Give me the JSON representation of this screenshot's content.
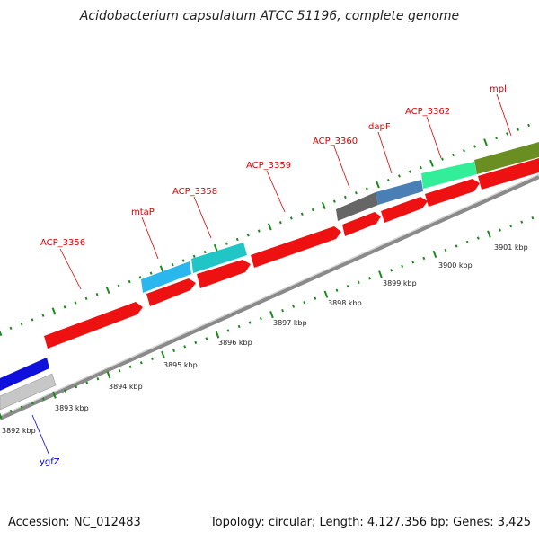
{
  "title": "Acidobacterium capsulatum ATCC 51196, complete genome",
  "footer": {
    "accession": "Accession: NC_012483",
    "summary": "Topology: circular; Length: 4,127,356 bp; Genes: 3,425"
  },
  "colors": {
    "forward_cds": "#ee1111",
    "label_red": "#dd0000",
    "label_blue": "#0000cc",
    "tick_green": "#1a8a1a",
    "backbone": "#888888"
  },
  "gene_labels": [
    {
      "name": "ACP_3356",
      "color": "#dd0000"
    },
    {
      "name": "mtaP",
      "color": "#dd0000"
    },
    {
      "name": "ACP_3358",
      "color": "#dd0000"
    },
    {
      "name": "ACP_3359",
      "color": "#dd0000"
    },
    {
      "name": "ACP_3360",
      "color": "#dd0000"
    },
    {
      "name": "dapF",
      "color": "#dd0000"
    },
    {
      "name": "ACP_3362",
      "color": "#dd0000"
    },
    {
      "name": "mpl",
      "color": "#dd0000"
    },
    {
      "name": "ygfZ",
      "color": "#0000cc"
    }
  ],
  "kbp_ticks": [
    "3892 kbp",
    "3893 kbp",
    "3894 kbp",
    "3895 kbp",
    "3896 kbp",
    "3897 kbp",
    "3898 kbp",
    "3899 kbp",
    "3900 kbp",
    "3901 kbp"
  ]
}
